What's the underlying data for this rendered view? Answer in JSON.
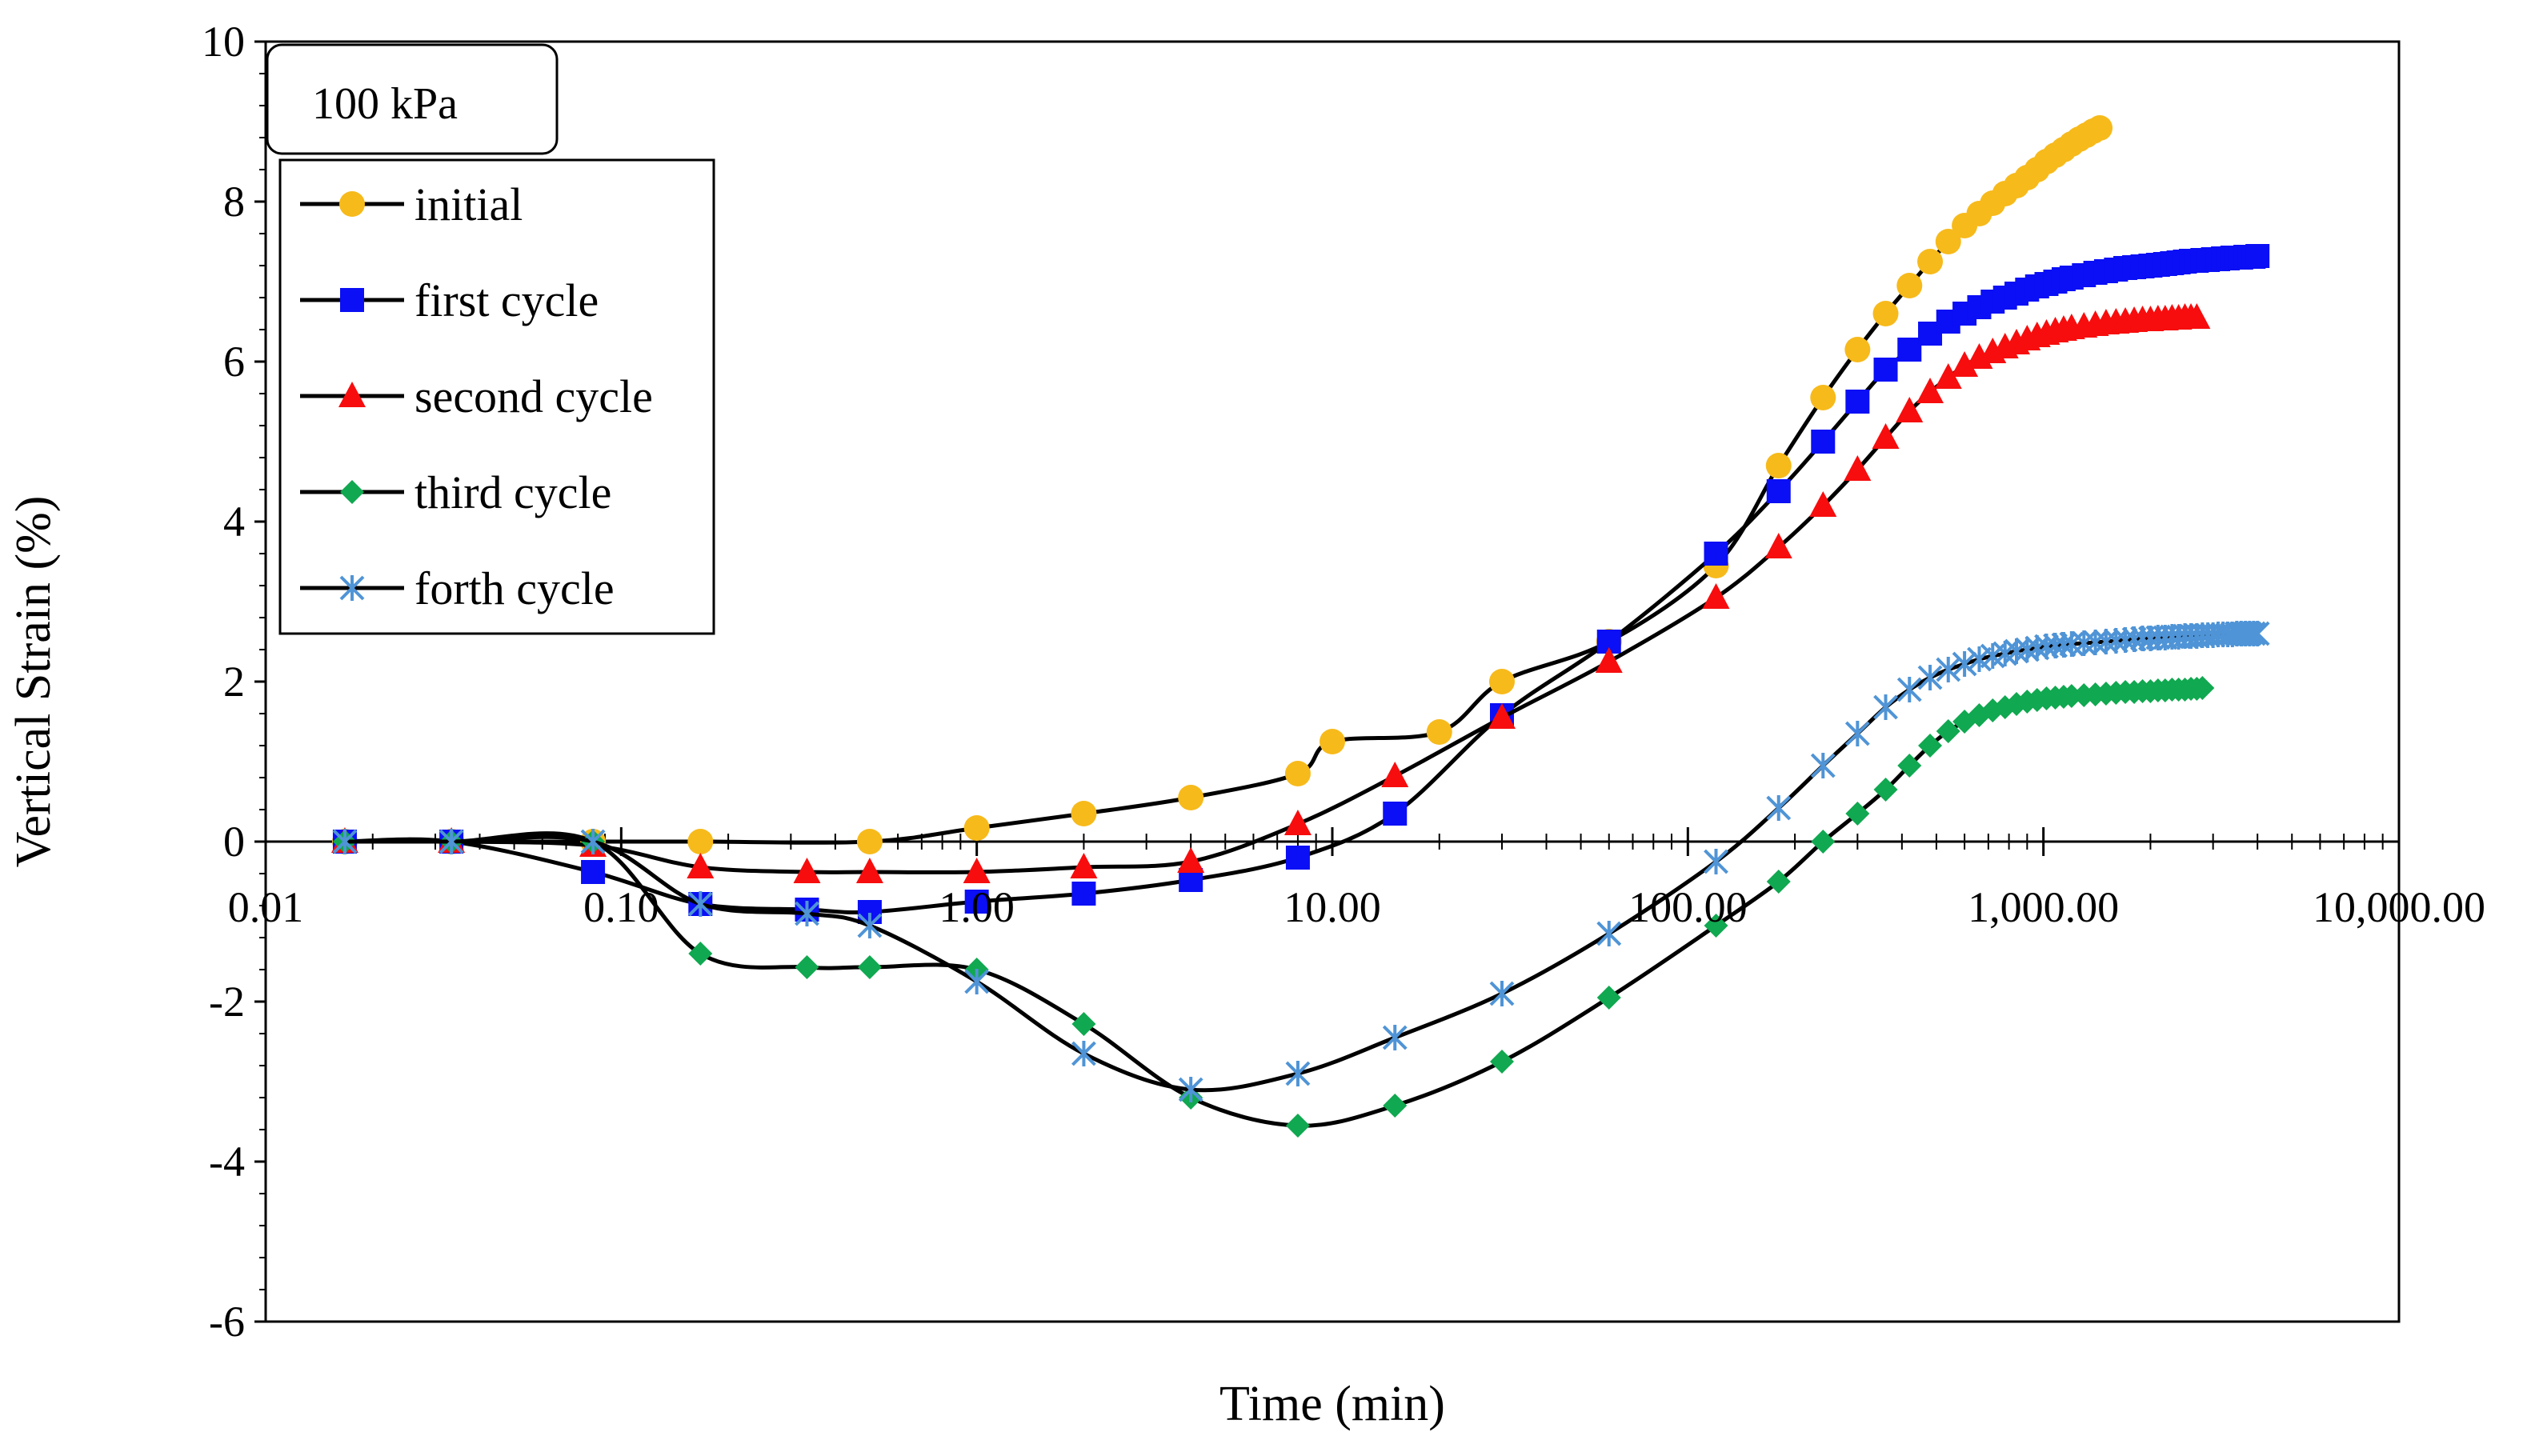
{
  "chart_data": {
    "type": "line",
    "title": "",
    "annotation": "100 kPa",
    "xlabel": "Time  (min)",
    "ylabel": "Vertical Strain (%)",
    "x_scale": "log",
    "xlim": [
      0.01,
      10000
    ],
    "ylim": [
      -6,
      10
    ],
    "x_tick_values": [
      0.01,
      0.1,
      1,
      10,
      100,
      1000,
      10000
    ],
    "x_tick_labels": [
      "0.01",
      "0.10",
      "1.00",
      "10.00",
      "100.00",
      "1,000.00",
      "10,000.00"
    ],
    "y_tick_values": [
      -6,
      -4,
      -2,
      0,
      2,
      4,
      6,
      8,
      10
    ],
    "y_tick_labels": [
      "-6",
      "-4",
      "-2",
      "0",
      "2",
      "4",
      "6",
      "8",
      "10"
    ],
    "legend_position": "top-left",
    "series": [
      {
        "name": "initial",
        "color": "#F7BA1B",
        "marker": "circle",
        "x": [
          0.0167,
          0.0333,
          0.0833,
          0.167,
          0.5,
          1,
          2,
          4,
          8,
          10,
          20,
          30,
          60,
          120,
          180,
          240,
          300,
          360,
          420,
          480,
          540,
          600,
          660,
          720,
          780,
          840,
          900,
          960,
          1020,
          1080,
          1140,
          1200,
          1260,
          1320,
          1380,
          1440
        ],
        "y": [
          0,
          0,
          0,
          0,
          0,
          0.17,
          0.35,
          0.55,
          0.85,
          1.25,
          1.37,
          2.0,
          2.5,
          3.45,
          4.7,
          5.55,
          6.15,
          6.6,
          6.95,
          7.25,
          7.5,
          7.7,
          7.85,
          7.98,
          8.1,
          8.2,
          8.3,
          8.4,
          8.5,
          8.58,
          8.65,
          8.72,
          8.78,
          8.83,
          8.88,
          8.92
        ]
      },
      {
        "name": "first cycle",
        "color": "#0A0FF5",
        "marker": "square",
        "x": [
          0.0167,
          0.0333,
          0.0833,
          0.167,
          0.333,
          0.5,
          1,
          2,
          4,
          8,
          15,
          30,
          60,
          120,
          180,
          240,
          300,
          360,
          420,
          480,
          540,
          600,
          660,
          720,
          780,
          840,
          900,
          960,
          1020,
          1080,
          1140,
          1200,
          1300,
          1400,
          1500,
          1600,
          1700,
          1800,
          1900,
          2000,
          2100,
          2200,
          2300,
          2400,
          2500,
          2600,
          2700,
          2800,
          2900,
          3000,
          3100,
          3200,
          3300,
          3400,
          3500,
          3600,
          3700,
          3800,
          3900,
          4000
        ],
        "y": [
          0,
          0,
          -0.38,
          -0.78,
          -0.85,
          -0.88,
          -0.75,
          -0.65,
          -0.48,
          -0.2,
          0.35,
          1.58,
          2.5,
          3.6,
          4.38,
          5.0,
          5.5,
          5.9,
          6.15,
          6.35,
          6.5,
          6.6,
          6.68,
          6.75,
          6.8,
          6.85,
          6.9,
          6.94,
          6.97,
          7.0,
          7.03,
          7.05,
          7.08,
          7.11,
          7.13,
          7.15,
          7.17,
          7.18,
          7.19,
          7.2,
          7.21,
          7.22,
          7.23,
          7.24,
          7.25,
          7.26,
          7.26,
          7.27,
          7.27,
          7.28,
          7.28,
          7.29,
          7.29,
          7.3,
          7.3,
          7.3,
          7.31,
          7.31,
          7.31,
          7.32
        ]
      },
      {
        "name": "second cycle",
        "color": "#F70D0D",
        "marker": "triangle",
        "x": [
          0.0167,
          0.0333,
          0.0833,
          0.167,
          0.333,
          0.5,
          1,
          2,
          4,
          8,
          15,
          30,
          60,
          120,
          180,
          240,
          300,
          360,
          420,
          480,
          540,
          600,
          660,
          720,
          780,
          840,
          900,
          960,
          1020,
          1080,
          1140,
          1200,
          1300,
          1400,
          1500,
          1600,
          1700,
          1800,
          1900,
          2000,
          2100,
          2200,
          2300,
          2400,
          2500,
          2600,
          2700
        ],
        "y": [
          0,
          0,
          -0.05,
          -0.32,
          -0.38,
          -0.38,
          -0.38,
          -0.32,
          -0.25,
          0.22,
          0.82,
          1.55,
          2.25,
          3.05,
          3.68,
          4.2,
          4.65,
          5.05,
          5.38,
          5.62,
          5.8,
          5.95,
          6.05,
          6.12,
          6.18,
          6.23,
          6.28,
          6.32,
          6.35,
          6.38,
          6.4,
          6.42,
          6.44,
          6.46,
          6.48,
          6.49,
          6.5,
          6.51,
          6.52,
          6.52,
          6.53,
          6.53,
          6.54,
          6.54,
          6.55,
          6.55,
          6.55
        ]
      },
      {
        "name": "third cycle",
        "color": "#10A850",
        "marker": "diamond",
        "x": [
          0.0167,
          0.0333,
          0.0833,
          0.167,
          0.333,
          0.5,
          1,
          2,
          4,
          8,
          15,
          30,
          60,
          120,
          180,
          240,
          300,
          360,
          420,
          480,
          540,
          600,
          660,
          720,
          780,
          840,
          900,
          960,
          1020,
          1080,
          1140,
          1200,
          1300,
          1400,
          1500,
          1600,
          1700,
          1800,
          1900,
          2000,
          2100,
          2200,
          2300,
          2400,
          2500,
          2600,
          2700,
          2800
        ],
        "y": [
          0,
          0,
          0,
          -1.4,
          -1.57,
          -1.57,
          -1.6,
          -2.28,
          -3.2,
          -3.55,
          -3.3,
          -2.75,
          -1.95,
          -1.05,
          -0.5,
          0,
          0.35,
          0.65,
          0.95,
          1.2,
          1.38,
          1.5,
          1.58,
          1.64,
          1.68,
          1.72,
          1.75,
          1.77,
          1.79,
          1.8,
          1.81,
          1.82,
          1.83,
          1.84,
          1.85,
          1.86,
          1.87,
          1.87,
          1.88,
          1.88,
          1.89,
          1.89,
          1.9,
          1.9,
          1.9,
          1.91,
          1.91,
          1.92
        ]
      },
      {
        "name": "forth cycle",
        "color": "#4F94D6",
        "marker": "asterisk",
        "x": [
          0.0167,
          0.0333,
          0.0833,
          0.167,
          0.333,
          0.5,
          1,
          2,
          4,
          8,
          15,
          30,
          60,
          120,
          180,
          240,
          300,
          360,
          420,
          480,
          540,
          600,
          660,
          720,
          780,
          840,
          900,
          960,
          1020,
          1080,
          1140,
          1200,
          1300,
          1400,
          1500,
          1600,
          1700,
          1800,
          1900,
          2000,
          2100,
          2200,
          2300,
          2400,
          2500,
          2600,
          2700,
          2800,
          2900,
          3000,
          3100,
          3200,
          3300,
          3400,
          3500,
          3600,
          3700,
          3800,
          3900,
          4000
        ],
        "y": [
          0,
          0,
          0,
          -0.78,
          -0.9,
          -1.05,
          -1.75,
          -2.65,
          -3.1,
          -2.9,
          -2.45,
          -1.9,
          -1.15,
          -0.25,
          0.42,
          0.95,
          1.35,
          1.68,
          1.9,
          2.05,
          2.15,
          2.22,
          2.28,
          2.32,
          2.35,
          2.38,
          2.4,
          2.42,
          2.44,
          2.45,
          2.46,
          2.47,
          2.48,
          2.49,
          2.5,
          2.51,
          2.52,
          2.53,
          2.54,
          2.54,
          2.55,
          2.55,
          2.56,
          2.56,
          2.57,
          2.57,
          2.57,
          2.58,
          2.58,
          2.58,
          2.59,
          2.59,
          2.59,
          2.59,
          2.6,
          2.6,
          2.6,
          2.6,
          2.6,
          2.6
        ]
      }
    ]
  }
}
